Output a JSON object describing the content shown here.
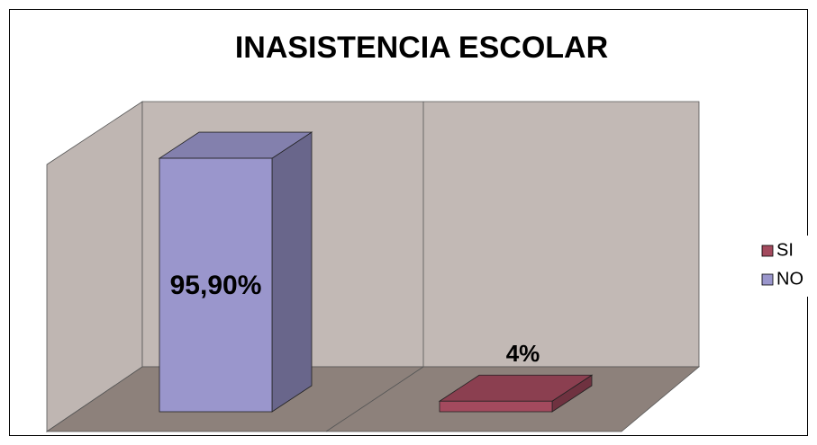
{
  "chart_data": {
    "type": "bar3d",
    "title": "INASISTENCIA ESCOLAR",
    "series": [
      {
        "name": "NO",
        "color": "#9a96cc",
        "values": [
          95.9
        ],
        "value_labels": [
          "95,90%"
        ]
      },
      {
        "name": "SI",
        "color": "#a34a5e",
        "values": [
          4
        ],
        "value_labels": [
          "4%"
        ]
      }
    ],
    "ylim": [
      0,
      100
    ],
    "legend": "right"
  }
}
